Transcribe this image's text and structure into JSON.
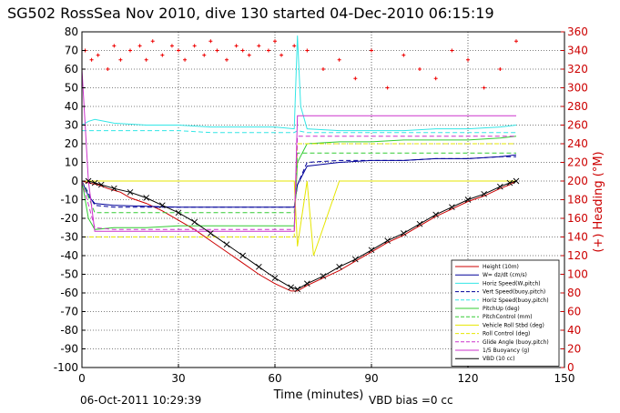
{
  "title": "SG502 RossSea Nov 2010, dive 130 started 04-Dec-2010 06:15:19",
  "footer": {
    "timestamp": "06-Oct-2011 10:29:39",
    "vbd_bias": "VBD bias =0 cc"
  },
  "chart_data": {
    "type": "line",
    "xlabel": "Time (minutes)",
    "ylabel_right": "(+) Heading (°M)",
    "xlim": [
      0,
      150
    ],
    "ylim": [
      -100,
      80
    ],
    "ylim_right": [
      0,
      360
    ],
    "x_ticks": [
      0,
      30,
      60,
      90,
      120,
      150
    ],
    "y_ticks": [
      -100,
      -90,
      -80,
      -70,
      -60,
      -50,
      -40,
      -30,
      -20,
      -10,
      0,
      10,
      20,
      30,
      40,
      50,
      60,
      70,
      80
    ],
    "y_ticks_right": [
      0,
      20,
      40,
      60,
      80,
      100,
      120,
      140,
      160,
      180,
      200,
      220,
      240,
      260,
      280,
      300,
      320,
      340,
      360
    ],
    "grid": true,
    "legend_placement": "bottom-right",
    "colors": {
      "height": "#cc0000",
      "w": "#000099",
      "horiz_speed": "#33e6e6",
      "pitch": "#33cc33",
      "roll": "#e6e600",
      "buoyancy": "#cc33cc",
      "vbd": "#000000",
      "heading": "#ee0000"
    },
    "series": [
      {
        "name": "Height (10m)",
        "color": "#cc0000",
        "style": "solid",
        "x": [
          0,
          2,
          5,
          8,
          12,
          15,
          20,
          25,
          30,
          35,
          40,
          45,
          50,
          55,
          60,
          65,
          67,
          70,
          75,
          80,
          85,
          90,
          95,
          100,
          105,
          110,
          115,
          120,
          125,
          130,
          133,
          135
        ],
        "values": [
          0,
          -1,
          -2,
          -4,
          -6,
          -9,
          -12,
          -16,
          -21,
          -26,
          -32,
          -38,
          -44,
          -50,
          -55,
          -59,
          -59,
          -56,
          -52,
          -48,
          -43,
          -38,
          -33,
          -29,
          -24,
          -19,
          -15,
          -11,
          -8,
          -4,
          -2,
          0
        ]
      },
      {
        "name": "W= dz/dt (cm/s)",
        "color": "#000099",
        "style": "solid",
        "x": [
          0,
          2,
          4,
          10,
          20,
          30,
          40,
          50,
          60,
          66,
          67,
          70,
          80,
          90,
          100,
          110,
          120,
          130,
          135
        ],
        "values": [
          0,
          -8,
          -12,
          -13,
          -13.5,
          -14,
          -14,
          -14,
          -14,
          -14,
          -2,
          8,
          10,
          11,
          11,
          12,
          12,
          13,
          14
        ]
      },
      {
        "name": "Horiz Speed(W,pitch)",
        "color": "#33e6e6",
        "style": "solid",
        "x": [
          0,
          2,
          4,
          10,
          20,
          30,
          40,
          50,
          60,
          66,
          67,
          68,
          70,
          80,
          90,
          100,
          110,
          120,
          130,
          135
        ],
        "values": [
          30,
          32,
          33,
          31,
          30,
          30,
          29,
          29,
          29,
          28,
          78,
          40,
          28,
          27,
          27,
          27,
          28,
          28,
          29,
          30
        ]
      },
      {
        "name": "Vert Speed(buoy,pitch)",
        "color": "#000099",
        "style": "dashed",
        "x": [
          0,
          4,
          10,
          20,
          30,
          40,
          50,
          60,
          66,
          67,
          70,
          80,
          90,
          100,
          110,
          120,
          130,
          135
        ],
        "values": [
          0,
          -13,
          -14,
          -14,
          -14,
          -14,
          -14,
          -14,
          -14,
          -2,
          10,
          11,
          11,
          11,
          12,
          12,
          13,
          13
        ]
      },
      {
        "name": "Horiz Speed(buoy,pitch)",
        "color": "#33e6e6",
        "style": "dashed",
        "x": [
          0,
          4,
          10,
          20,
          30,
          40,
          50,
          60,
          66,
          67,
          70,
          80,
          90,
          100,
          110,
          120,
          130,
          135
        ],
        "values": [
          27,
          27,
          27,
          27,
          27,
          26,
          26,
          26,
          26,
          27,
          26,
          26,
          26,
          26,
          26,
          26,
          26,
          26
        ]
      },
      {
        "name": "PitchUp (deg)",
        "color": "#33cc33",
        "style": "solid",
        "x": [
          0,
          2,
          4,
          10,
          20,
          30,
          40,
          50,
          60,
          66,
          67,
          70,
          80,
          90,
          100,
          110,
          120,
          130,
          135
        ],
        "values": [
          0,
          -20,
          -26,
          -25,
          -25,
          -24,
          -24,
          -24,
          -24,
          -24,
          10,
          20,
          21,
          21,
          22,
          22,
          22,
          23,
          24
        ]
      },
      {
        "name": "PitchControl (mm)",
        "color": "#33cc33",
        "style": "dashed",
        "x": [
          0,
          4,
          10,
          20,
          30,
          40,
          50,
          60,
          66,
          67,
          70,
          80,
          90,
          100,
          110,
          120,
          130,
          135
        ],
        "values": [
          0,
          -17,
          -17,
          -17,
          -17,
          -17,
          -17,
          -17,
          -17,
          15,
          15,
          15,
          15,
          15,
          15,
          15,
          15,
          15
        ]
      },
      {
        "name": "Vehicle Roll Stbd (deg)",
        "color": "#e6e600",
        "style": "solid",
        "x": [
          0,
          2,
          4,
          10,
          20,
          30,
          40,
          50,
          60,
          66,
          67,
          70,
          72,
          80,
          90,
          100,
          110,
          120,
          130,
          135
        ],
        "values": [
          0,
          0,
          0,
          0,
          0,
          0,
          0,
          0,
          0,
          0,
          -35,
          0,
          -40,
          0,
          0,
          0,
          0,
          0,
          0,
          0
        ]
      },
      {
        "name": "Roll Control (deg)",
        "color": "#e6e600",
        "style": "dashed",
        "x": [
          0,
          4,
          10,
          20,
          30,
          40,
          50,
          60,
          66,
          67,
          70,
          80,
          90,
          100,
          110,
          120,
          130,
          135
        ],
        "values": [
          -30,
          -30,
          -30,
          -30,
          -30,
          -30,
          -30,
          -30,
          -30,
          20,
          20,
          20,
          20,
          20,
          20,
          20,
          20,
          20
        ]
      },
      {
        "name": "Glide Angle (buoy,pitch)",
        "color": "#cc33cc",
        "style": "dashed",
        "x": [
          0,
          4,
          10,
          20,
          30,
          40,
          50,
          60,
          66,
          67,
          70,
          80,
          90,
          100,
          110,
          120,
          130,
          135
        ],
        "values": [
          0,
          -25,
          -26,
          -26,
          -26,
          -26,
          -26,
          -26,
          -26,
          24,
          24,
          24,
          24,
          24,
          24,
          24,
          24,
          24
        ]
      },
      {
        "name": "1/5 Buoyancy (g)",
        "color": "#cc33cc",
        "style": "solid",
        "x": [
          0,
          2,
          4,
          10,
          20,
          30,
          40,
          50,
          60,
          66,
          67,
          70,
          80,
          90,
          100,
          110,
          120,
          130,
          135
        ],
        "values": [
          60,
          0,
          -27,
          -27,
          -27,
          -27,
          -27,
          -27,
          -27,
          -27,
          35,
          35,
          35,
          35,
          35,
          35,
          35,
          35,
          35
        ]
      },
      {
        "name": "VBD (10 cc)",
        "color": "#000000",
        "style": "solid",
        "marker": "x",
        "x": [
          2,
          4,
          6,
          10,
          15,
          20,
          25,
          30,
          35,
          40,
          45,
          50,
          55,
          60,
          65,
          67,
          70,
          75,
          80,
          85,
          90,
          95,
          100,
          105,
          110,
          115,
          120,
          125,
          130,
          133,
          135
        ],
        "values": [
          0,
          -1,
          -2,
          -4,
          -6,
          -9,
          -13,
          -17,
          -22,
          -28,
          -34,
          -40,
          -46,
          -52,
          -57,
          -58,
          -55,
          -51,
          -46,
          -42,
          -37,
          -32,
          -28,
          -23,
          -18,
          -14,
          -10,
          -7,
          -3,
          -1,
          0
        ]
      }
    ],
    "heading": {
      "name": "Heading",
      "color": "#ee0000",
      "axis": "right",
      "x": [
        1,
        3,
        5,
        8,
        10,
        12,
        15,
        18,
        20,
        22,
        25,
        28,
        30,
        32,
        35,
        38,
        40,
        42,
        45,
        48,
        50,
        52,
        55,
        58,
        60,
        62,
        66
      ],
      "values": [
        340,
        330,
        335,
        320,
        345,
        330,
        340,
        345,
        330,
        350,
        335,
        345,
        340,
        330,
        345,
        335,
        350,
        340,
        330,
        345,
        340,
        335,
        345,
        340,
        350,
        335,
        345
      ],
      "descent_x": [
        70,
        75,
        80,
        85,
        90,
        95,
        100,
        105,
        110,
        115,
        120,
        125,
        130,
        135
      ],
      "descent_values": [
        340,
        320,
        330,
        310,
        340,
        300,
        335,
        320,
        310,
        340,
        330,
        300,
        320,
        350
      ]
    }
  }
}
